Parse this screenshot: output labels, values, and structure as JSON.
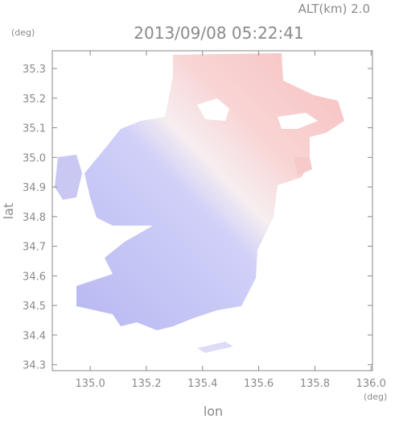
{
  "chart_data": {
    "type": "map",
    "title": "2013/09/08 05:22:41",
    "subtitle": "ALT(km) 2.0",
    "x_label": "lon",
    "y_label": "lat",
    "x_unit": "(deg)",
    "y_unit": "(deg)",
    "xlim": [
      134.865,
      136.005
    ],
    "ylim": [
      34.28,
      35.36
    ],
    "xticks": [
      {
        "value": 135.0,
        "label": "135.0"
      },
      135.2,
      135.4,
      135.6,
      135.8,
      {
        "value": 136.0,
        "label": "136.0"
      }
    ],
    "yticks": [
      34.3,
      34.4,
      34.5,
      34.6,
      34.7,
      34.8,
      34.9,
      {
        "value": 35.0,
        "label": "35.0"
      },
      35.1,
      35.2,
      35.3
    ]
  }
}
